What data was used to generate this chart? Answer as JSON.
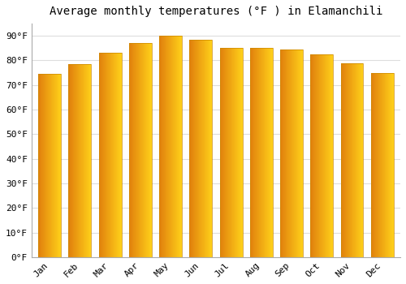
{
  "title": "Average monthly temperatures (°F ) in Elamanchili",
  "months": [
    "Jan",
    "Feb",
    "Mar",
    "Apr",
    "May",
    "Jun",
    "Jul",
    "Aug",
    "Sep",
    "Oct",
    "Nov",
    "Dec"
  ],
  "values": [
    74.5,
    78.5,
    83.0,
    87.0,
    90.0,
    88.5,
    85.0,
    85.0,
    84.5,
    82.5,
    79.0,
    75.0
  ],
  "bar_color_left": "#E08000",
  "bar_color_right": "#FFD000",
  "ylim": [
    0,
    95
  ],
  "yticks": [
    0,
    10,
    20,
    30,
    40,
    50,
    60,
    70,
    80,
    90
  ],
  "ytick_labels": [
    "0°F",
    "10°F",
    "20°F",
    "30°F",
    "40°F",
    "50°F",
    "60°F",
    "70°F",
    "80°F",
    "90°F"
  ],
  "background_color": "#FFFFFF",
  "grid_color": "#DDDDDD",
  "title_fontsize": 10,
  "tick_fontsize": 8,
  "font_family": "monospace",
  "bar_width": 0.75,
  "bar_edge_color": "#CC8800",
  "bar_edge_width": 0.5
}
